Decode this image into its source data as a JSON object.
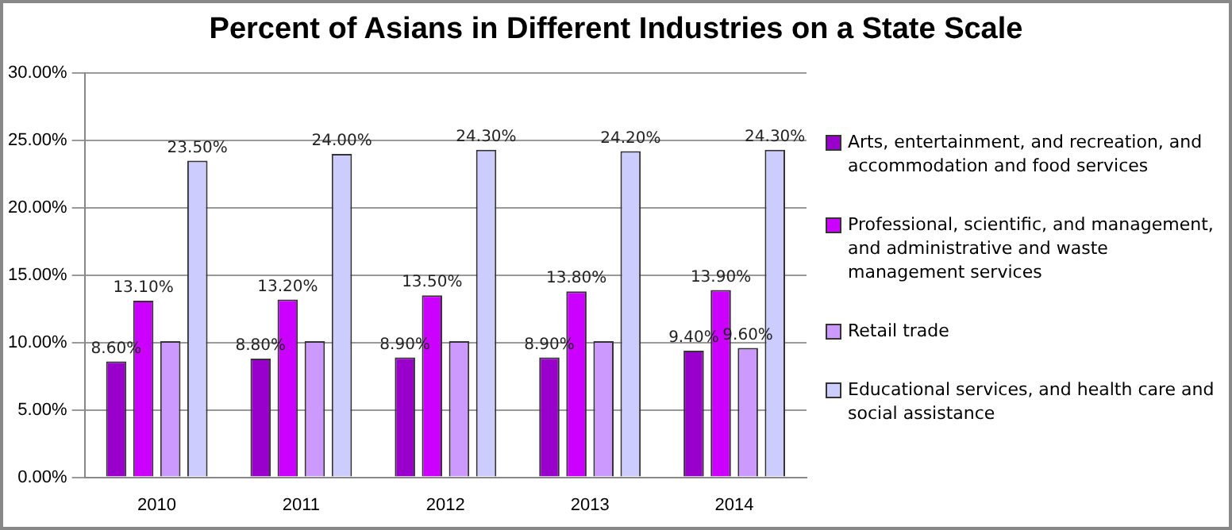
{
  "chart_data": {
    "type": "bar",
    "title": "Percent of Asians in Different Industries on a State Scale",
    "categories": [
      "2010",
      "2011",
      "2012",
      "2013",
      "2014"
    ],
    "series": [
      {
        "name": "Arts, entertainment, and recreation, and accommodation and food services",
        "color": "#9900cc",
        "values": [
          8.6,
          8.8,
          8.9,
          8.9,
          9.4
        ],
        "value_labels": [
          "8.60%",
          "8.80%",
          "8.90%",
          "8.90%",
          "9.40%"
        ]
      },
      {
        "name": "Professional, scientific, and management, and administrative and waste management services",
        "color": "#cc00ff",
        "values": [
          13.1,
          13.2,
          13.5,
          13.8,
          13.9
        ],
        "value_labels": [
          "13.10%",
          "13.20%",
          "13.50%",
          "13.80%",
          "13.90%"
        ]
      },
      {
        "name": "Retail trade",
        "color": "#cc99ff",
        "values": [
          10.1,
          10.1,
          10.1,
          10.1,
          9.6
        ],
        "value_labels": [
          null,
          null,
          null,
          null,
          "9.60%"
        ]
      },
      {
        "name": "Educational services, and health care and social assistance",
        "color": "#ccccff",
        "values": [
          23.5,
          24.0,
          24.3,
          24.2,
          24.3
        ],
        "value_labels": [
          "23.50%",
          "24.00%",
          "24.30%",
          "24.20%",
          "24.30%"
        ]
      }
    ],
    "ylim": [
      0,
      30
    ],
    "yticks": [
      {
        "value": 0,
        "label": "0.00%"
      },
      {
        "value": 5,
        "label": "5.00%"
      },
      {
        "value": 10,
        "label": "10.00%"
      },
      {
        "value": 15,
        "label": "15.00%"
      },
      {
        "value": 20,
        "label": "20.00%"
      },
      {
        "value": 25,
        "label": "25.00%"
      },
      {
        "value": 30,
        "label": "30.00%"
      }
    ],
    "grid": "y",
    "legend": "right"
  }
}
